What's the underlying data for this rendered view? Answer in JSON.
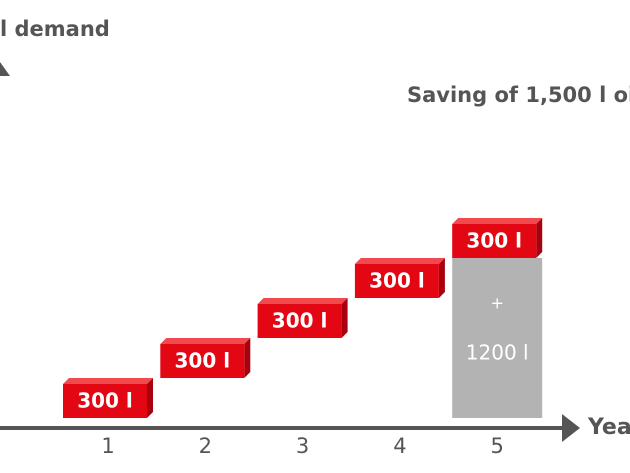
{
  "chart_data": {
    "type": "waterfall",
    "title": "l demand",
    "annotation": "Saving of 1,500 l oi",
    "x_label": "Yea",
    "categories": [
      "1",
      "2",
      "3",
      "4",
      "5"
    ],
    "values": [
      300,
      300,
      300,
      300,
      300
    ],
    "value_labels": [
      "300 l",
      "300 l",
      "300 l",
      "300 l",
      "300 l"
    ],
    "color": "#e30613",
    "base": {
      "value": 1200,
      "label": "1200 l",
      "symbol": "+",
      "color": "#b3b3b3"
    }
  }
}
